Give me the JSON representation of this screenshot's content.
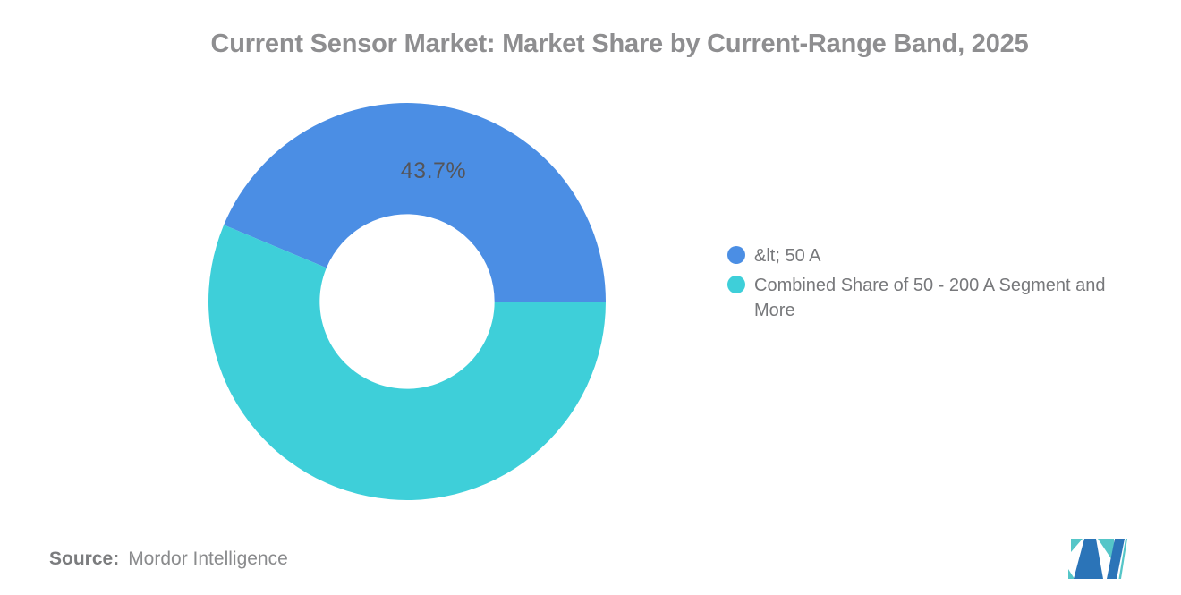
{
  "title": {
    "text": "Current Sensor Market: Market Share by Current-Range Band, 2025",
    "color": "#8E8E90"
  },
  "chart_data": {
    "type": "pie",
    "subtype": "donut",
    "title": "Current Sensor Market: Market Share by Current-Range Band, 2025",
    "categories": [
      "&lt; 50 A",
      "Combined Share of 50 - 200 A Segment and More"
    ],
    "values": [
      43.7,
      56.3
    ],
    "labels": [
      "43.7%",
      ""
    ],
    "colors": [
      "#4B8EE4",
      "#3ECFD9"
    ],
    "start_angle_deg": 0,
    "direction": "counterclockwise",
    "outer_radius": 222,
    "inner_radius_ratio": 0.44,
    "label_radius_ratio": 0.675,
    "label_color": "#54555A",
    "legend_position": "right",
    "background": "#ffffff"
  },
  "legend": {
    "items": [
      {
        "label": "&lt; 50 A",
        "color": "#4B8EE4"
      },
      {
        "label": "Combined Share of 50 - 200 A Segment and More",
        "color": "#3ECFD9"
      }
    ],
    "text_color": "#77787B"
  },
  "footer": {
    "source_prefix": "Source:",
    "source_text": "Mordor Intelligence"
  },
  "logo": {
    "name": "Mordor Intelligence logo",
    "blue": "#2B74B8",
    "teal": "#55C6C8"
  }
}
